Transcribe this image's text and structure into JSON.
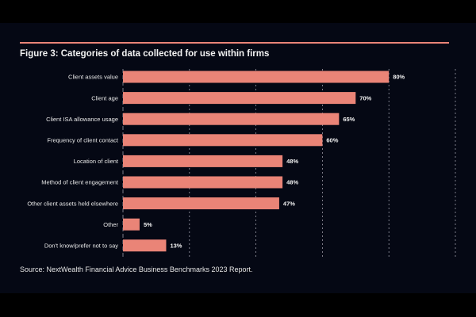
{
  "chart_data": {
    "type": "bar",
    "orientation": "horizontal",
    "title": "Figure 3: Categories of data collected for use within firms",
    "categories": [
      "Client assets value",
      "Client age",
      "Client ISA allowance usage",
      "Frequency of client contact",
      "Location of client",
      "Method of client engagement",
      "Other client assets held elsewhere",
      "Other",
      "Don't know/prefer not to say"
    ],
    "values": [
      80,
      70,
      65,
      60,
      48,
      48,
      47,
      5,
      13
    ],
    "value_labels": [
      "80%",
      "70%",
      "65%",
      "60%",
      "48%",
      "48%",
      "47%",
      "5%",
      "13%"
    ],
    "xlim": [
      0,
      100
    ],
    "grid": "vertical dashed every 20%",
    "bar_color": "#ea8477",
    "background": "#050814",
    "source": "Source: NextWealth Financial Advice Business Benchmarks 2023 Report."
  }
}
